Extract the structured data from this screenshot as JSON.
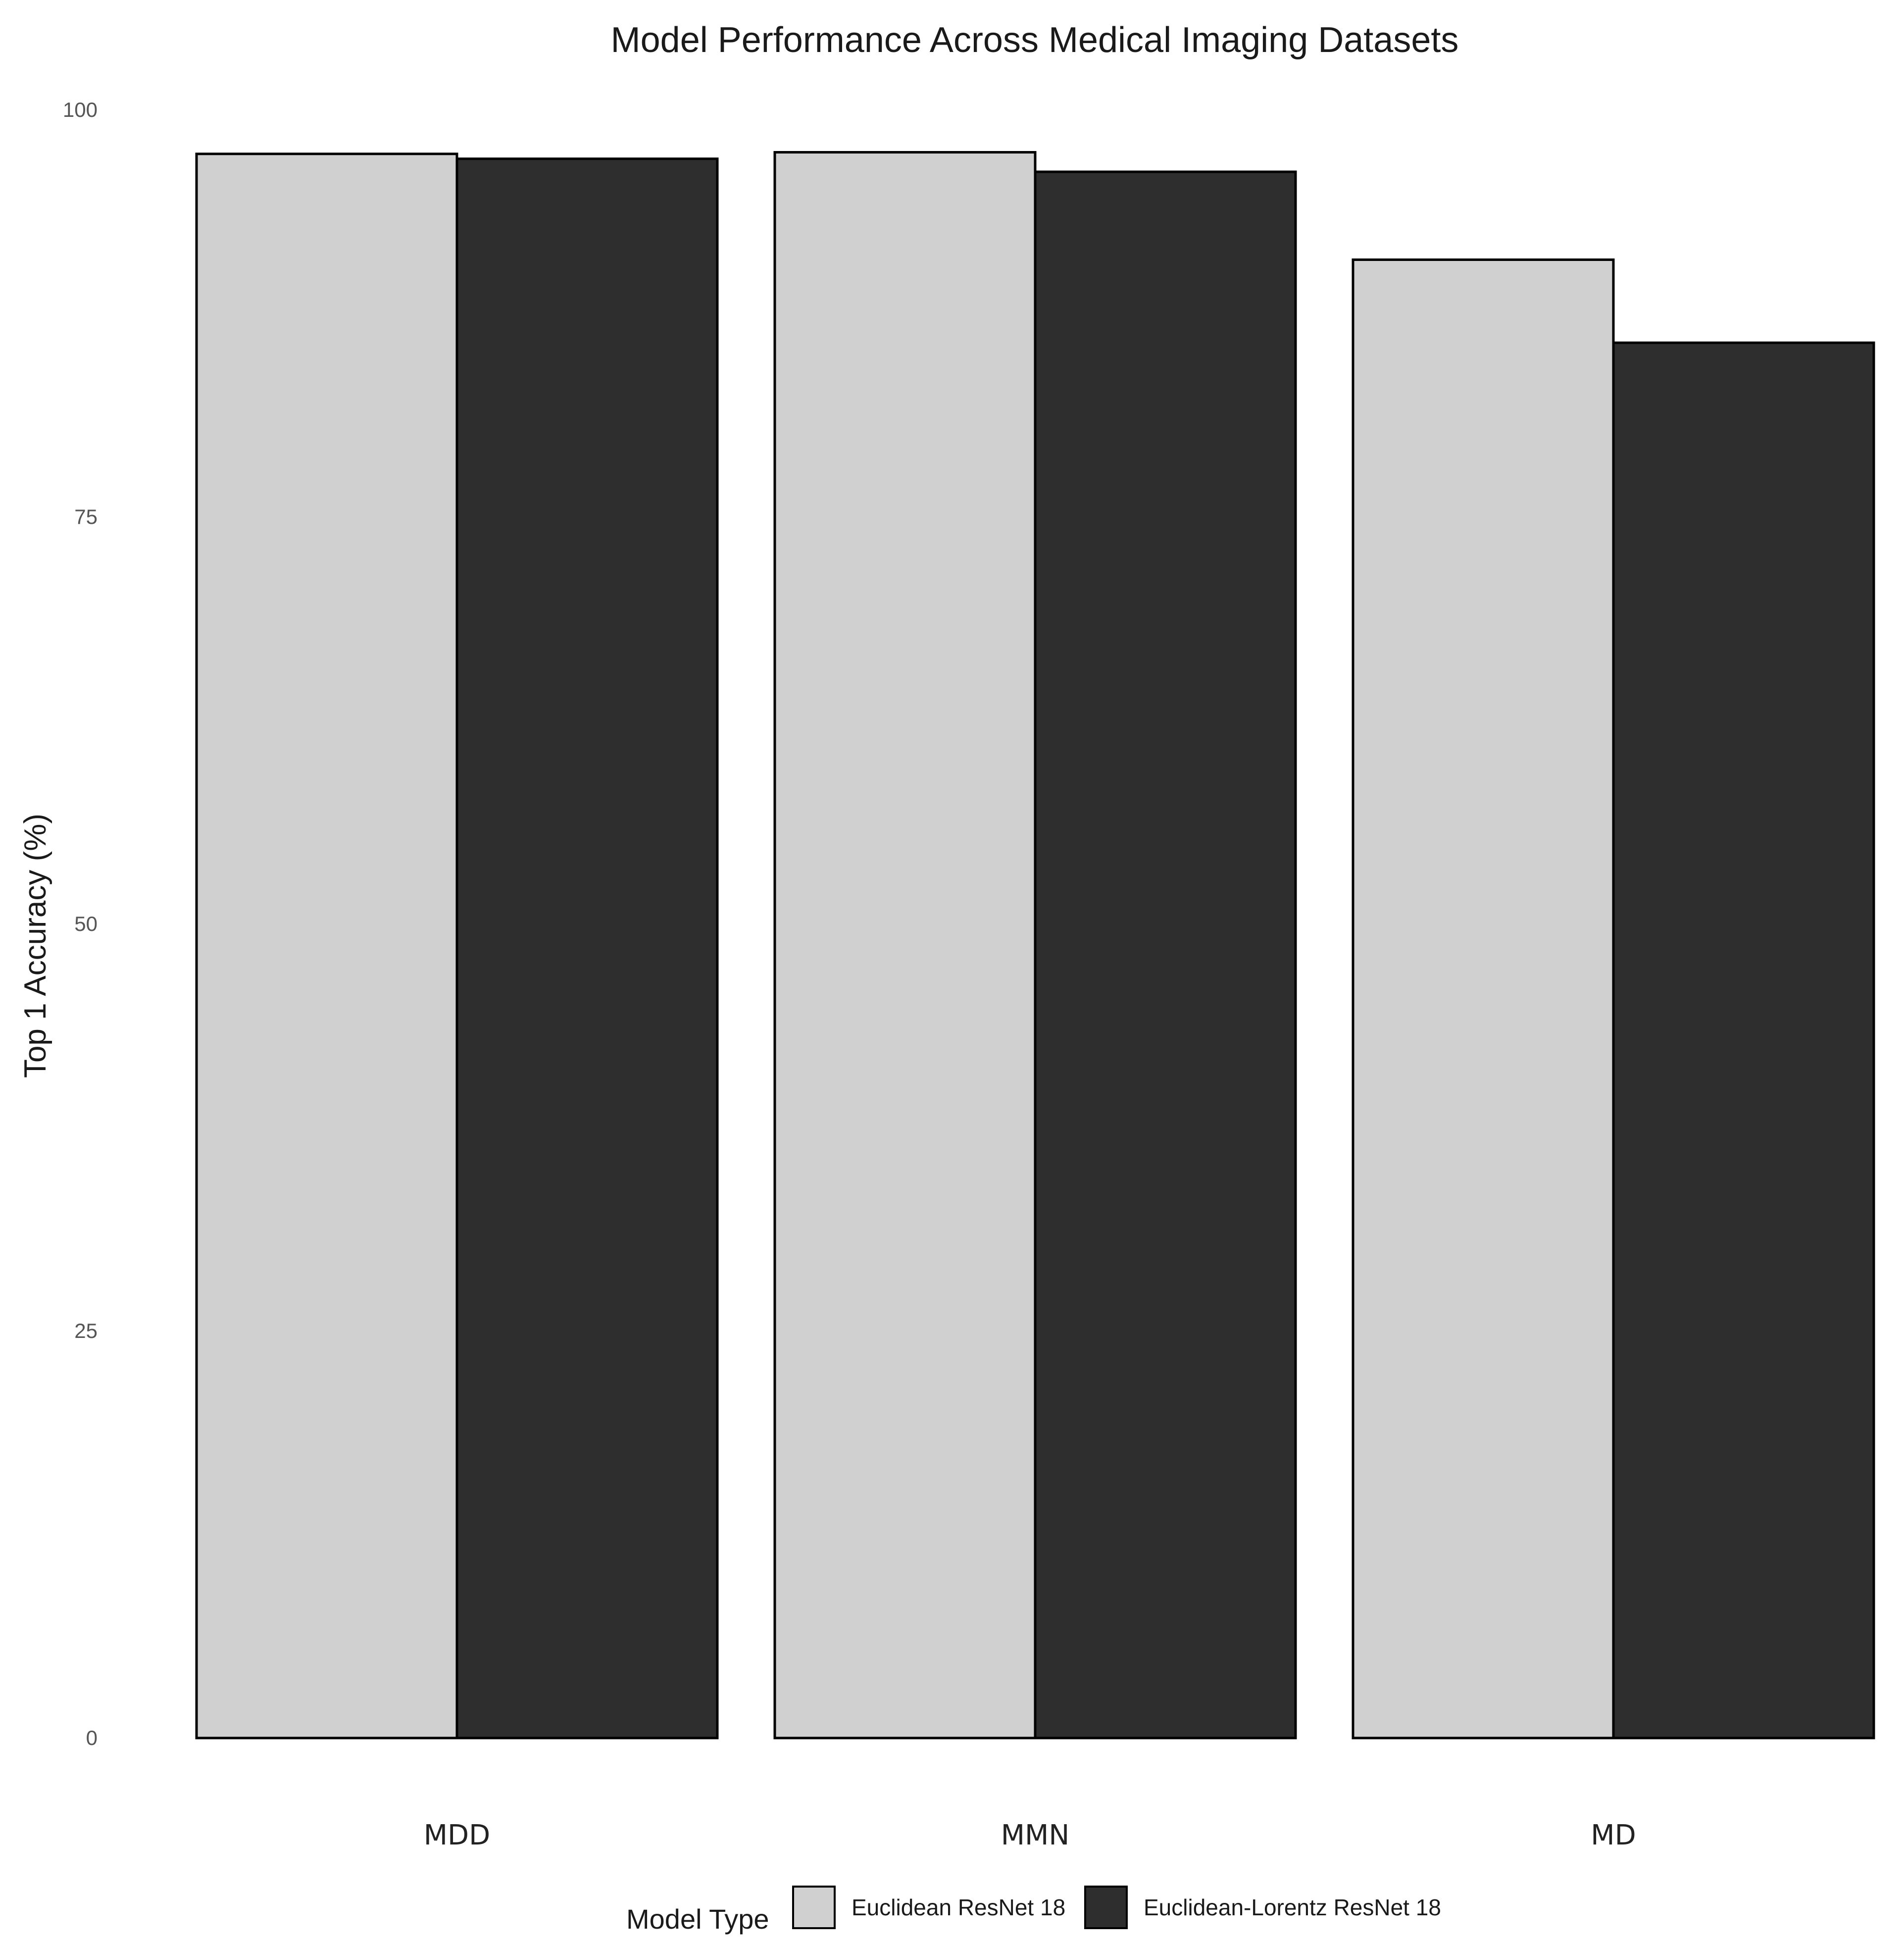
{
  "chart_data": {
    "type": "bar",
    "title": "Model Performance Across Medical Imaging Datasets",
    "xlabel": "",
    "ylabel": "Top 1 Accuracy (%)",
    "categories": [
      "MDD",
      "MMN",
      "MD"
    ],
    "ylim": [
      0,
      100
    ],
    "yticks": [
      "0",
      "25",
      "50",
      "75",
      "100"
    ],
    "series": [
      {
        "name": "Euclidean ResNet 18",
        "values": [
          97.3,
          97.4,
          90.8
        ],
        "color": "#d0d0d0"
      },
      {
        "name": "Euclidean-Lorentz ResNet 18",
        "values": [
          97.0,
          96.2,
          85.7
        ],
        "color": "#2e2e2e"
      }
    ],
    "legend": {
      "title": "Model Type",
      "position": "bottom"
    },
    "grid": false
  }
}
